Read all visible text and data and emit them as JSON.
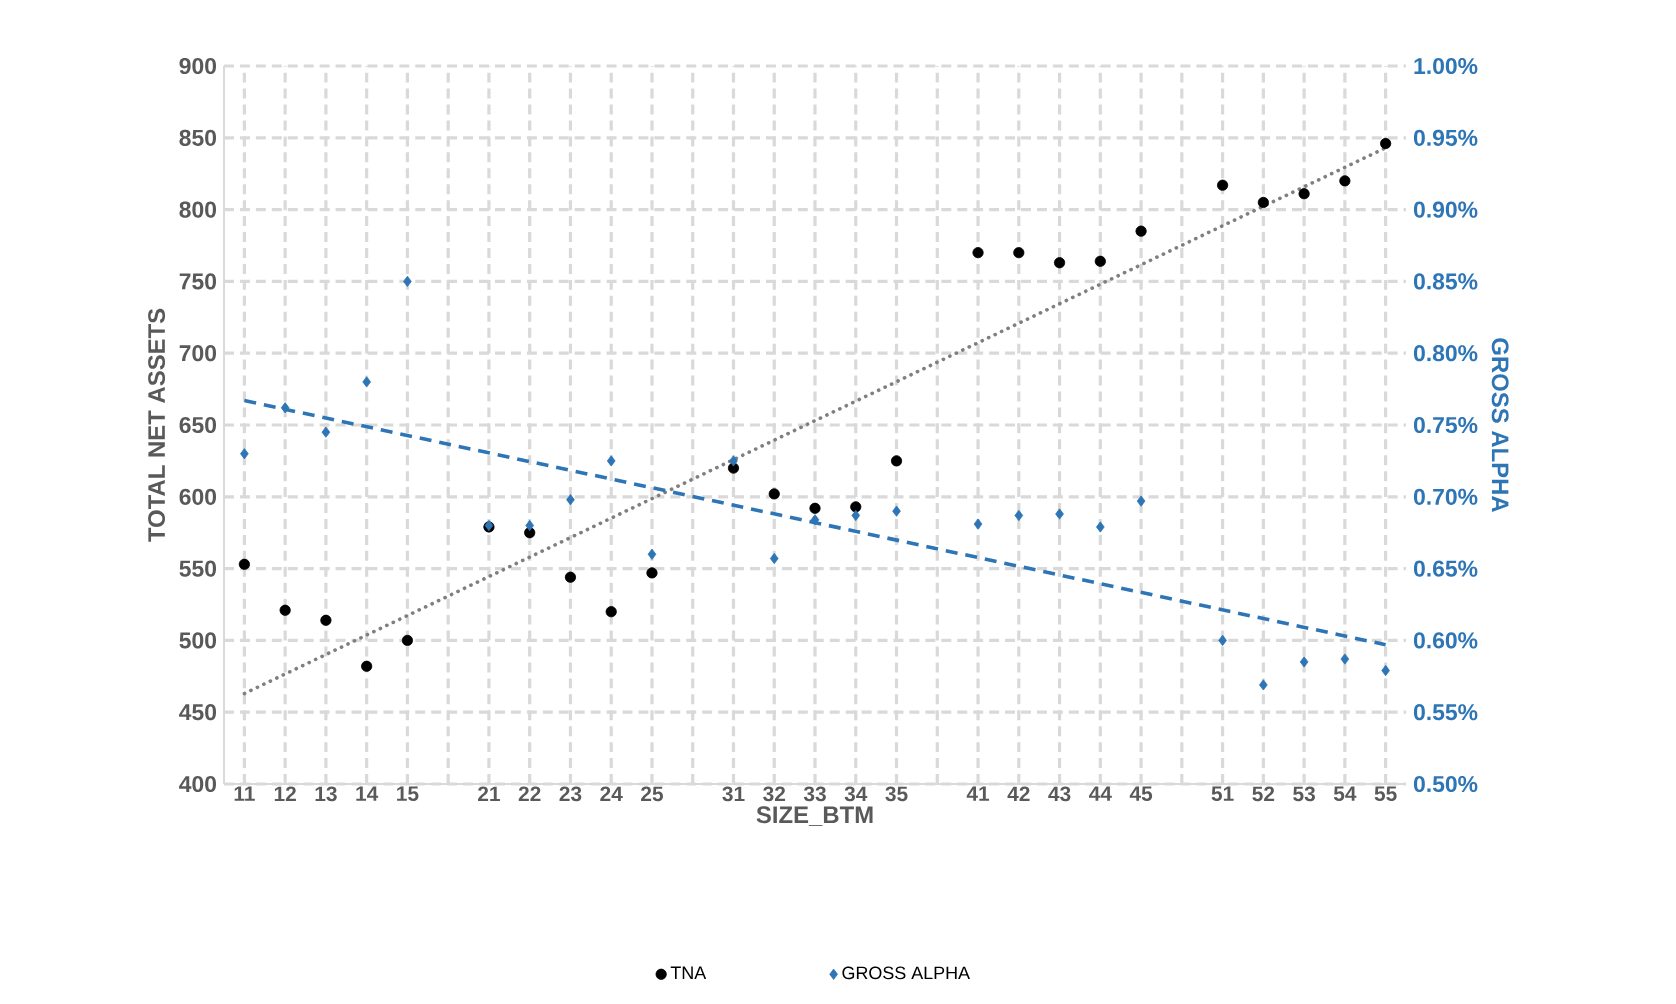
{
  "chart_data": {
    "type": "scatter",
    "xlabel": "SIZE_BTM",
    "ylabel": "TOTAL NET ASSETS",
    "y2label": "GROSS ALPHA",
    "categories": [
      "11",
      "12",
      "13",
      "14",
      "15",
      null,
      "21",
      "22",
      "23",
      "24",
      "25",
      null,
      "31",
      "32",
      "33",
      "34",
      "35",
      null,
      "41",
      "42",
      "43",
      "44",
      "45",
      null,
      "51",
      "52",
      "53",
      "54",
      "55"
    ],
    "ylim": [
      400,
      900
    ],
    "yticks": [
      400,
      450,
      500,
      550,
      600,
      650,
      700,
      750,
      800,
      850,
      900
    ],
    "y2lim": [
      0.5,
      1.0
    ],
    "y2ticks": [
      {
        "value": 0.5,
        "label": "0.50%"
      },
      {
        "value": 0.55,
        "label": "0.55%"
      },
      {
        "value": 0.6,
        "label": "0.60%"
      },
      {
        "value": 0.65,
        "label": "0.65%"
      },
      {
        "value": 0.7,
        "label": "0.70%"
      },
      {
        "value": 0.75,
        "label": "0.75%"
      },
      {
        "value": 0.8,
        "label": "0.80%"
      },
      {
        "value": 0.85,
        "label": "0.85%"
      },
      {
        "value": 0.9,
        "label": "0.90%"
      },
      {
        "value": 0.95,
        "label": "0.95%"
      },
      {
        "value": 1.0,
        "label": "1.00%"
      }
    ],
    "grid": true,
    "legend": "bottom",
    "series": [
      {
        "name": "TNA",
        "color": "#000000",
        "marker": "circle",
        "values": [
          553,
          521,
          514,
          482,
          500,
          null,
          579,
          575,
          544,
          520,
          547,
          null,
          620,
          602,
          592,
          593,
          625,
          null,
          770,
          770,
          763,
          764,
          785,
          null,
          817,
          805,
          811,
          820,
          846
        ]
      },
      {
        "name": "GROSS ALPHA",
        "color": "#2e75b6",
        "marker": "diamond",
        "axis": "y2",
        "values": [
          0.73,
          0.762,
          0.745,
          0.78,
          0.85,
          null,
          0.68,
          0.68,
          0.698,
          0.725,
          0.66,
          null,
          0.725,
          0.657,
          0.684,
          0.687,
          0.69,
          null,
          0.681,
          0.687,
          0.688,
          0.679,
          0.697,
          null,
          0.6,
          0.569,
          0.585,
          0.587,
          0.579
        ]
      },
      {
        "type": "line",
        "color": "#7f7f7f",
        "line_style": "dotted",
        "values": [
          463,
          null,
          null,
          null,
          null,
          null,
          null,
          null,
          null,
          null,
          null,
          null,
          null,
          null,
          null,
          null,
          null,
          null,
          null,
          null,
          null,
          null,
          null,
          null,
          null,
          null,
          null,
          null,
          843
        ]
      },
      {
        "type": "line",
        "color": "#2e75b6",
        "line_style": "dashed",
        "axis": "y2",
        "values": [
          0.767,
          null,
          null,
          null,
          null,
          null,
          null,
          null,
          null,
          null,
          null,
          null,
          null,
          null,
          null,
          null,
          null,
          null,
          null,
          null,
          null,
          null,
          null,
          null,
          null,
          null,
          null,
          null,
          0.597
        ]
      }
    ]
  }
}
